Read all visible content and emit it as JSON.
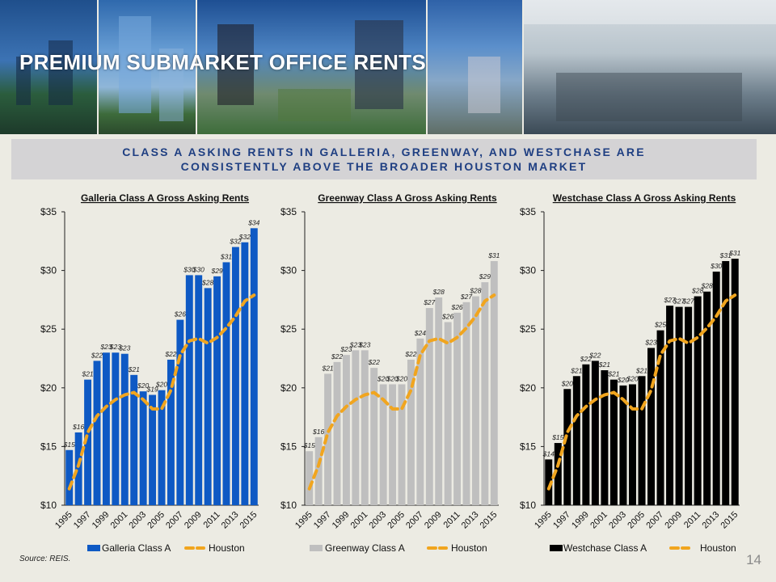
{
  "page": {
    "title": "PREMIUM SUBMARKET OFFICE RENTS",
    "subtitle_lines": [
      "CLASS A ASKING RENTS IN GALLERIA, GREENWAY, AND WESTCHASE ARE",
      "CONSISTENTLY ABOVE THE BROADER HOUSTON MARKET"
    ],
    "source": "Source: REIS.",
    "page_number": "14"
  },
  "colors": {
    "galleria": "#0e59c4",
    "greenway": "#bfbfbf",
    "westchase": "#000000",
    "houston": "#f1a51e",
    "subtitle_text": "#1f3f82"
  },
  "chart_data": [
    {
      "type": "bar",
      "title": "Galleria Class A Gross Asking Rents",
      "ylim": [
        10,
        35
      ],
      "yticks": [
        "$10",
        "$15",
        "$20",
        "$25",
        "$30",
        "$35"
      ],
      "categories": [
        1995,
        1996,
        1997,
        1998,
        1999,
        2000,
        2001,
        2002,
        2003,
        2004,
        2005,
        2006,
        2007,
        2008,
        2009,
        2010,
        2011,
        2012,
        2013,
        2014,
        2015
      ],
      "xtick_labels": [
        "1995",
        "1997",
        "1999",
        "2001",
        "2003",
        "2005",
        "2007",
        "2009",
        "2011",
        "2013",
        "2015"
      ],
      "series": [
        {
          "name": "Galleria Class A",
          "type": "bar",
          "color": "#0e59c4",
          "values": [
            14.7,
            16.2,
            20.7,
            22.3,
            23.0,
            23.0,
            22.9,
            21.1,
            19.7,
            19.4,
            19.8,
            22.4,
            25.8,
            29.6,
            29.6,
            28.5,
            29.5,
            30.7,
            32.0,
            32.4,
            33.6
          ],
          "labels": [
            "$15",
            "$16",
            "$21",
            "$22",
            "$23",
            "$23",
            "$23",
            "$21",
            "$20",
            "$19",
            "$20",
            "$22",
            "$26",
            "$30",
            "$30",
            "$28",
            "$29",
            "$31",
            "$32",
            "$32",
            "$34"
          ]
        },
        {
          "name": "Houston",
          "type": "line",
          "style": "dashed",
          "color": "#f1a51e",
          "values": [
            11.4,
            13.4,
            16.2,
            17.6,
            18.4,
            19.0,
            19.4,
            19.6,
            19.0,
            18.2,
            18.2,
            19.8,
            22.8,
            24.0,
            24.2,
            23.8,
            24.3,
            25.1,
            26.1,
            27.4,
            27.9
          ]
        }
      ],
      "legend": "bottom"
    },
    {
      "type": "bar",
      "title": "Greenway Class A Gross Asking Rents",
      "ylim": [
        10,
        35
      ],
      "yticks": [
        "$10",
        "$15",
        "$20",
        "$25",
        "$30",
        "$35"
      ],
      "categories": [
        1995,
        1996,
        1997,
        1998,
        1999,
        2000,
        2001,
        2002,
        2003,
        2004,
        2005,
        2006,
        2007,
        2008,
        2009,
        2010,
        2011,
        2012,
        2013,
        2014,
        2015
      ],
      "xtick_labels": [
        "1995",
        "1997",
        "1999",
        "2001",
        "2003",
        "2005",
        "2007",
        "2009",
        "2011",
        "2013",
        "2015"
      ],
      "series": [
        {
          "name": "Greenway Class A",
          "type": "bar",
          "color": "#bfbfbf",
          "values": [
            14.6,
            15.8,
            21.2,
            22.2,
            22.8,
            23.2,
            23.2,
            21.7,
            20.3,
            20.3,
            20.3,
            22.4,
            24.2,
            26.8,
            27.7,
            25.6,
            26.4,
            27.3,
            27.8,
            29.0,
            30.8
          ],
          "labels": [
            "$15",
            "$16",
            "$21",
            "$22",
            "$23",
            "$23",
            "$23",
            "$22",
            "$20",
            "$20",
            "$20",
            "$22",
            "$24",
            "$27",
            "$28",
            "$26",
            "$26",
            "$27",
            "$28",
            "$29",
            "$31"
          ]
        },
        {
          "name": "Houston",
          "type": "line",
          "style": "dashed",
          "color": "#f1a51e",
          "values": [
            11.4,
            13.4,
            16.2,
            17.6,
            18.4,
            19.0,
            19.4,
            19.6,
            19.0,
            18.2,
            18.2,
            19.8,
            22.8,
            24.0,
            24.2,
            23.8,
            24.3,
            25.1,
            26.1,
            27.4,
            27.9
          ]
        }
      ],
      "legend": "bottom"
    },
    {
      "type": "bar",
      "title": "Westchase Class A Gross Asking Rents",
      "ylim": [
        10,
        35
      ],
      "yticks": [
        "$10",
        "$15",
        "$20",
        "$25",
        "$30",
        "$35"
      ],
      "categories": [
        1995,
        1996,
        1997,
        1998,
        1999,
        2000,
        2001,
        2002,
        2003,
        2004,
        2005,
        2006,
        2007,
        2008,
        2009,
        2010,
        2011,
        2012,
        2013,
        2014,
        2015
      ],
      "xtick_labels": [
        "1995",
        "1997",
        "1999",
        "2001",
        "2003",
        "2005",
        "2007",
        "2009",
        "2011",
        "2013",
        "2015"
      ],
      "series": [
        {
          "name": "Westchase Class A",
          "type": "bar",
          "color": "#000000",
          "values": [
            13.9,
            15.3,
            19.9,
            21.0,
            22.0,
            22.3,
            21.5,
            20.7,
            20.2,
            20.3,
            21.0,
            23.4,
            24.9,
            27.0,
            26.9,
            26.9,
            27.8,
            28.2,
            29.9,
            30.8,
            31.0
          ],
          "labels": [
            "$14",
            "$15",
            "$20",
            "$21",
            "$22",
            "$22",
            "$21",
            "$21",
            "$20",
            "$20",
            "$21",
            "$23",
            "$25",
            "$27",
            "$27",
            "$27",
            "$28",
            "$28",
            "$30",
            "$31",
            "$31"
          ]
        },
        {
          "name": "Houston",
          "type": "line",
          "style": "dashed",
          "color": "#f1a51e",
          "values": [
            11.4,
            13.4,
            16.2,
            17.6,
            18.4,
            19.0,
            19.4,
            19.6,
            19.0,
            18.2,
            18.2,
            19.8,
            22.8,
            24.0,
            24.2,
            23.8,
            24.3,
            25.1,
            26.1,
            27.4,
            27.9
          ]
        }
      ],
      "legend": "bottom"
    }
  ]
}
